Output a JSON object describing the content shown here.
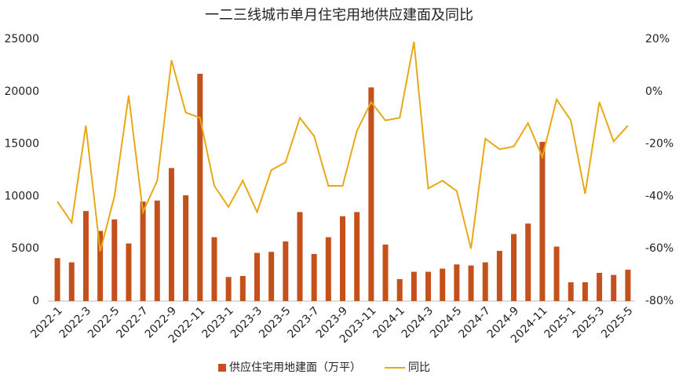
{
  "chart_data": {
    "type": "bar-line",
    "title": "一二三线城市单月住宅用地供应建面及同比",
    "categories": [
      "2022-1",
      null,
      "2022-3",
      null,
      "2022-5",
      null,
      "2022-7",
      null,
      "2022-9",
      null,
      "2022-11",
      null,
      "2023-1",
      null,
      "2023-3",
      null,
      "2023-5",
      null,
      "2023-7",
      null,
      "2023-9",
      null,
      "2023-11",
      null,
      "2024-1",
      null,
      "2024-3",
      null,
      "2024-5",
      null,
      "2024-7",
      null,
      "2024-9",
      null,
      "2024-11",
      null,
      "2025-1",
      null,
      "2025-3",
      null,
      "2025-5"
    ],
    "series": [
      {
        "name": "供应住宅用地建面（万平）",
        "type": "bar",
        "color": "#c4501b",
        "values": [
          4100,
          3700,
          8600,
          6700,
          7800,
          5500,
          9500,
          9600,
          12700,
          10100,
          21700,
          6100,
          2300,
          2400,
          4600,
          4700,
          5700,
          8500,
          4500,
          6100,
          8100,
          8500,
          20400,
          5400,
          2100,
          2800,
          2800,
          3100,
          3500,
          3400,
          3700,
          4800,
          6400,
          7400,
          15200,
          5200,
          1800,
          1800,
          2700,
          2500,
          3000
        ]
      },
      {
        "name": "同比",
        "type": "line",
        "axis": "y2",
        "color": "#e8a917",
        "values": [
          -42,
          -50,
          -13,
          -61,
          -40,
          -1.5,
          -46,
          -34,
          12,
          -8,
          -10,
          -36,
          -44,
          -34,
          -46,
          -30,
          -27,
          -10,
          -17,
          -36,
          -36,
          -15,
          -4,
          -11,
          -10,
          19,
          -37,
          -34,
          -38,
          -60,
          -18,
          -22,
          -21,
          -12,
          -25,
          -3,
          -11,
          -39,
          -4,
          -19,
          -13
        ]
      }
    ],
    "ylim": [
      0,
      25000
    ],
    "yticks": [
      0,
      5000,
      10000,
      15000,
      20000,
      25000
    ],
    "y2lim": [
      -80,
      20
    ],
    "y2ticks": [
      {
        "value": -80,
        "label": "-80%"
      },
      {
        "value": -60,
        "label": "-60%"
      },
      {
        "value": -40,
        "label": "-40%"
      },
      {
        "value": -20,
        "label": "-20%"
      },
      {
        "value": 0,
        "label": "0%"
      },
      {
        "value": 20,
        "label": "20%"
      }
    ],
    "legend": "bottom"
  }
}
